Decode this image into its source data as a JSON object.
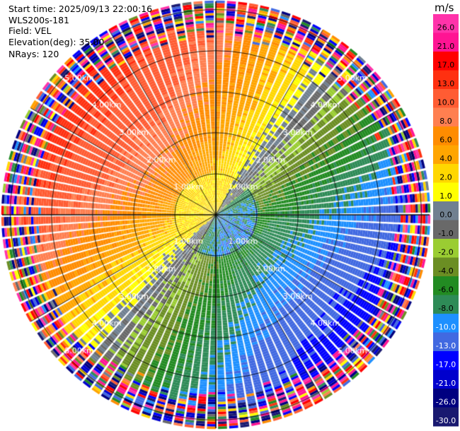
{
  "header": {
    "start_time": "Start time: 2025/09/13 22:00:16",
    "site": "WLS200s-181",
    "field": "Field: VEL",
    "elevation": "Elevation(deg): 35.00",
    "nrays": "NRays: 120"
  },
  "colorbar": {
    "unit": "m/s",
    "labels": [
      "26.0",
      "21.0",
      "17.0",
      "13.0",
      "10.0",
      "8.0",
      "6.0",
      "4.0",
      "2.0",
      "1.0",
      "0.0",
      "-1.0",
      "-2.0",
      "-4.0",
      "-6.0",
      "-8.0",
      "-10.0",
      "-13.0",
      "-17.0",
      "-21.0",
      "-26.0",
      "-30.0"
    ],
    "colors": [
      "#ff33aa",
      "#ff1493",
      "#ff0000",
      "#ff3010",
      "#ff5c33",
      "#ff7f50",
      "#ff8c00",
      "#ffa500",
      "#ffd700",
      "#ffff00",
      "#708090",
      "#696969",
      "#9acd32",
      "#6b8e23",
      "#228b22",
      "#2e8b57",
      "#1e90ff",
      "#4169e1",
      "#0000ff",
      "#0000cd",
      "#000080",
      "#191970"
    ]
  },
  "chart_data": {
    "type": "ppi",
    "field": "VEL",
    "units": "m/s",
    "elevation_deg": 35.0,
    "nrays": 120,
    "max_range_km": 5.2,
    "range_rings_km": [
      1,
      2,
      3,
      4,
      5
    ],
    "ring_labels": [
      "1.00km",
      "2.00km",
      "3.00km",
      "4.00km",
      "5.00km"
    ],
    "azimuth_lines_deg": [
      0,
      30,
      60,
      90,
      120,
      150,
      180,
      210,
      240,
      270,
      300,
      330
    ],
    "wind_pattern": {
      "toward_bearing_deg": 130,
      "near_surface_speed_ms": 1.5,
      "speed_increase_per_km": 1.2,
      "noise_beyond_km": 4.2
    }
  }
}
